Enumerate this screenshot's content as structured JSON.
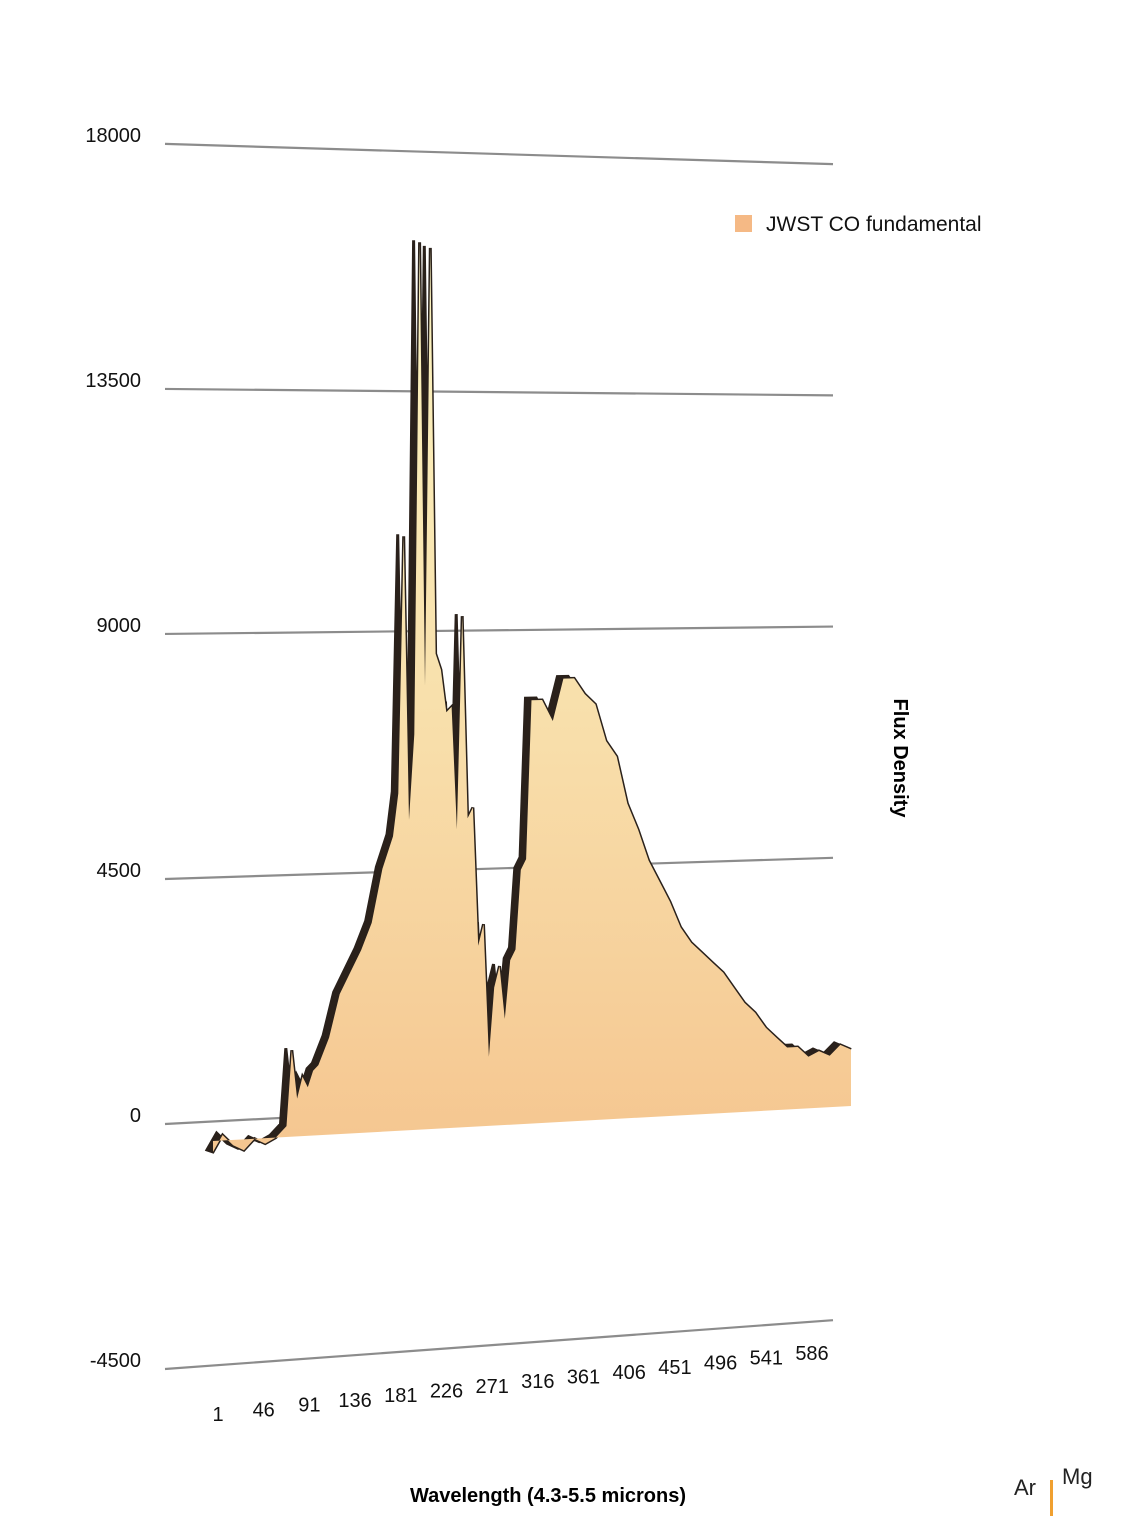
{
  "chart_data": {
    "type": "area",
    "title": "",
    "xlabel": "Wavelength (4.3-5.5 microns)",
    "ylabel": "Flux Density",
    "ylim": [
      -4500,
      18000
    ],
    "yticks": [
      "18000",
      "13500",
      "9000",
      "4500",
      "0",
      "-4500"
    ],
    "xticks": [
      "1",
      "46",
      "91",
      "136",
      "181",
      "226",
      "271",
      "316",
      "361",
      "406",
      "451",
      "496",
      "541",
      "586"
    ],
    "x_range": [
      1,
      600
    ],
    "grid": true,
    "legend_position": "top-right",
    "series": [
      {
        "name": "JWST CO fundamental",
        "color": "#f5b985",
        "x": [
          1,
          10,
          20,
          30,
          40,
          50,
          60,
          70,
          75,
          80,
          85,
          90,
          95,
          100,
          110,
          120,
          130,
          140,
          150,
          160,
          170,
          175,
          180,
          185,
          190,
          195,
          200,
          205,
          210,
          215,
          220,
          225,
          230,
          235,
          240,
          245,
          250,
          255,
          260,
          265,
          270,
          275,
          280,
          285,
          290,
          295,
          300,
          310,
          320,
          330,
          340,
          350,
          360,
          370,
          380,
          390,
          400,
          410,
          420,
          430,
          440,
          450,
          460,
          470,
          480,
          490,
          500,
          510,
          520,
          530,
          540,
          550,
          560,
          570,
          580,
          590,
          600
        ],
        "values": [
          -200,
          100,
          -100,
          -200,
          0,
          -100,
          0,
          200,
          1600,
          700,
          1100,
          900,
          1200,
          1300,
          1800,
          2600,
          3000,
          3400,
          3900,
          4900,
          5500,
          6300,
          11100,
          5800,
          7400,
          16600,
          8300,
          16500,
          8900,
          8600,
          7800,
          7900,
          5600,
          9600,
          5800,
          6000,
          3400,
          3800,
          1300,
          2600,
          3000,
          2000,
          3100,
          3300,
          4800,
          5000,
          8000,
          8000,
          7600,
          8400,
          8400,
          8100,
          7900,
          7200,
          6900,
          6000,
          5500,
          4900,
          4500,
          4100,
          3600,
          3300,
          3100,
          2900,
          2700,
          2400,
          2100,
          1900,
          1600,
          1400,
          1200,
          1200,
          1000,
          1100,
          1000,
          1200,
          1100
        ]
      }
    ]
  },
  "corner": {
    "label_left": "Ar",
    "label_right": "Mg"
  }
}
